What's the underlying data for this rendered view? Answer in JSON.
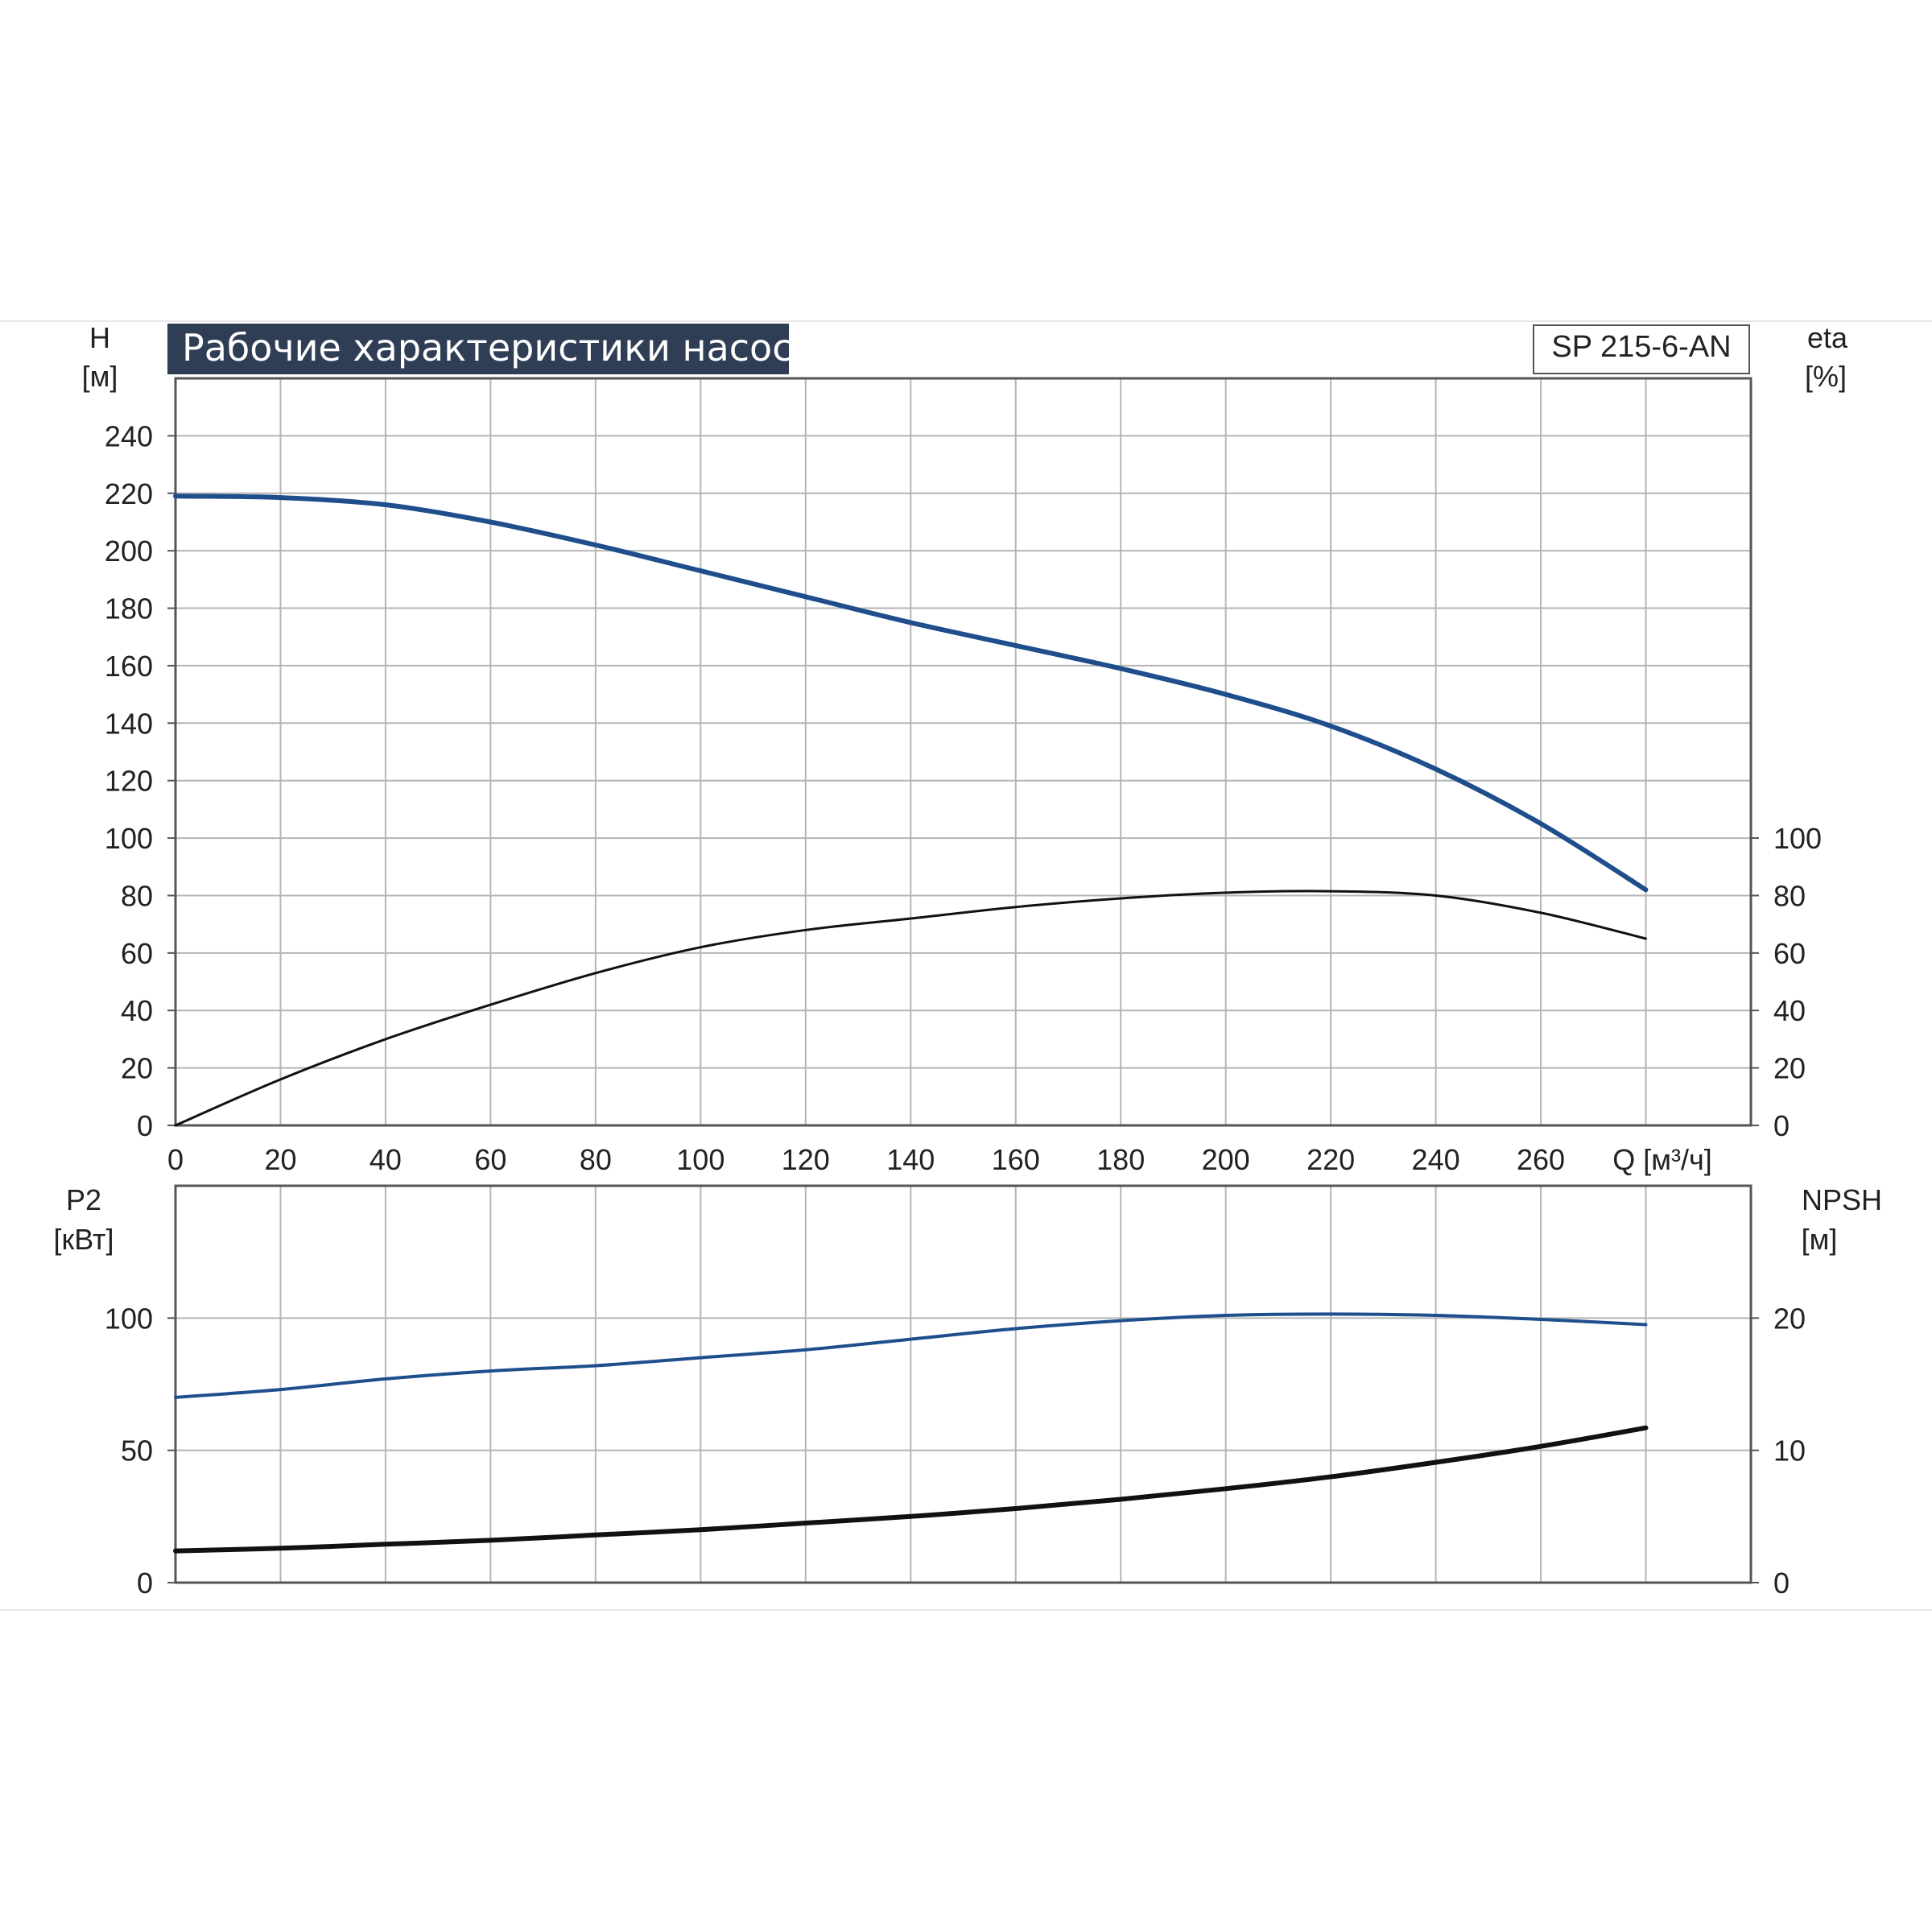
{
  "chart_data": [
    {
      "panel": "upper",
      "type": "line",
      "title": "Рабочие характеристики насоса",
      "model": "SP 215-6-AN",
      "xlabel": "Q [м³/ч]",
      "ylabel": {
        "name": "H",
        "unit": "[м]"
      },
      "ylabel_right": {
        "name": "eta",
        "unit": "[%]"
      },
      "xlim": [
        0,
        300
      ],
      "ylim": [
        0,
        260
      ],
      "ylim_right": [
        0,
        260
      ],
      "x_ticks": [
        "0",
        "20",
        "40",
        "60",
        "80",
        "100",
        "120",
        "140",
        "160",
        "180",
        "200",
        "220",
        "240",
        "260"
      ],
      "y_ticks": [
        "0",
        "20",
        "40",
        "60",
        "80",
        "100",
        "120",
        "140",
        "160",
        "180",
        "200",
        "220",
        "240"
      ],
      "y_ticks_right": [
        "0",
        "20",
        "40",
        "60",
        "80",
        "100"
      ],
      "grid": true,
      "series": [
        {
          "key": "H",
          "axis": "left",
          "color": "#1f4e8c",
          "width": 6,
          "points": [
            [
              0,
              219
            ],
            [
              20,
              218.5
            ],
            [
              40,
              216
            ],
            [
              60,
              210
            ],
            [
              80,
              202
            ],
            [
              100,
              193
            ],
            [
              120,
              184
            ],
            [
              140,
              175
            ],
            [
              160,
              167
            ],
            [
              180,
              159
            ],
            [
              200,
              150
            ],
            [
              220,
              139
            ],
            [
              240,
              124
            ],
            [
              260,
              105
            ],
            [
              280,
              82
            ]
          ]
        },
        {
          "key": "eta",
          "axis": "right",
          "color": "#111111",
          "width": 3,
          "points": [
            [
              0,
              0
            ],
            [
              20,
              16
            ],
            [
              40,
              30
            ],
            [
              60,
              42
            ],
            [
              80,
              53
            ],
            [
              100,
              62
            ],
            [
              120,
              68
            ],
            [
              140,
              72
            ],
            [
              160,
              76
            ],
            [
              180,
              79
            ],
            [
              200,
              81
            ],
            [
              220,
              81.5
            ],
            [
              240,
              80
            ],
            [
              260,
              74
            ],
            [
              280,
              65
            ]
          ]
        }
      ]
    },
    {
      "panel": "lower",
      "type": "line",
      "ylabel": {
        "name": "P2",
        "unit": "[кВт]"
      },
      "ylabel_right": {
        "name": "NPSH",
        "unit": "[м]"
      },
      "xlim": [
        0,
        300
      ],
      "ylim": [
        0,
        150
      ],
      "ylim_right": [
        0,
        30
      ],
      "y_ticks": [
        "0",
        "50",
        "100"
      ],
      "y_ticks_right": [
        "0",
        "10",
        "20"
      ],
      "grid": true,
      "series": [
        {
          "key": "P2",
          "axis": "left",
          "color": "#1f4e8c",
          "width": 4,
          "points": [
            [
              0,
              70
            ],
            [
              20,
              73
            ],
            [
              40,
              77
            ],
            [
              60,
              80
            ],
            [
              80,
              82
            ],
            [
              100,
              85
            ],
            [
              120,
              88
            ],
            [
              140,
              92
            ],
            [
              160,
              96
            ],
            [
              180,
              99
            ],
            [
              200,
              101
            ],
            [
              220,
              101.5
            ],
            [
              240,
              101
            ],
            [
              260,
              99.5
            ],
            [
              280,
              97.5
            ]
          ]
        },
        {
          "key": "NPSH",
          "axis": "right",
          "color": "#111111",
          "width": 6,
          "points": [
            [
              0,
              2.4
            ],
            [
              20,
              2.6
            ],
            [
              40,
              2.9
            ],
            [
              60,
              3.2
            ],
            [
              80,
              3.6
            ],
            [
              100,
              4.0
            ],
            [
              120,
              4.5
            ],
            [
              140,
              5.0
            ],
            [
              160,
              5.6
            ],
            [
              180,
              6.3
            ],
            [
              200,
              7.1
            ],
            [
              220,
              8.0
            ],
            [
              240,
              9.1
            ],
            [
              260,
              10.3
            ],
            [
              280,
              11.7
            ]
          ]
        }
      ]
    }
  ]
}
